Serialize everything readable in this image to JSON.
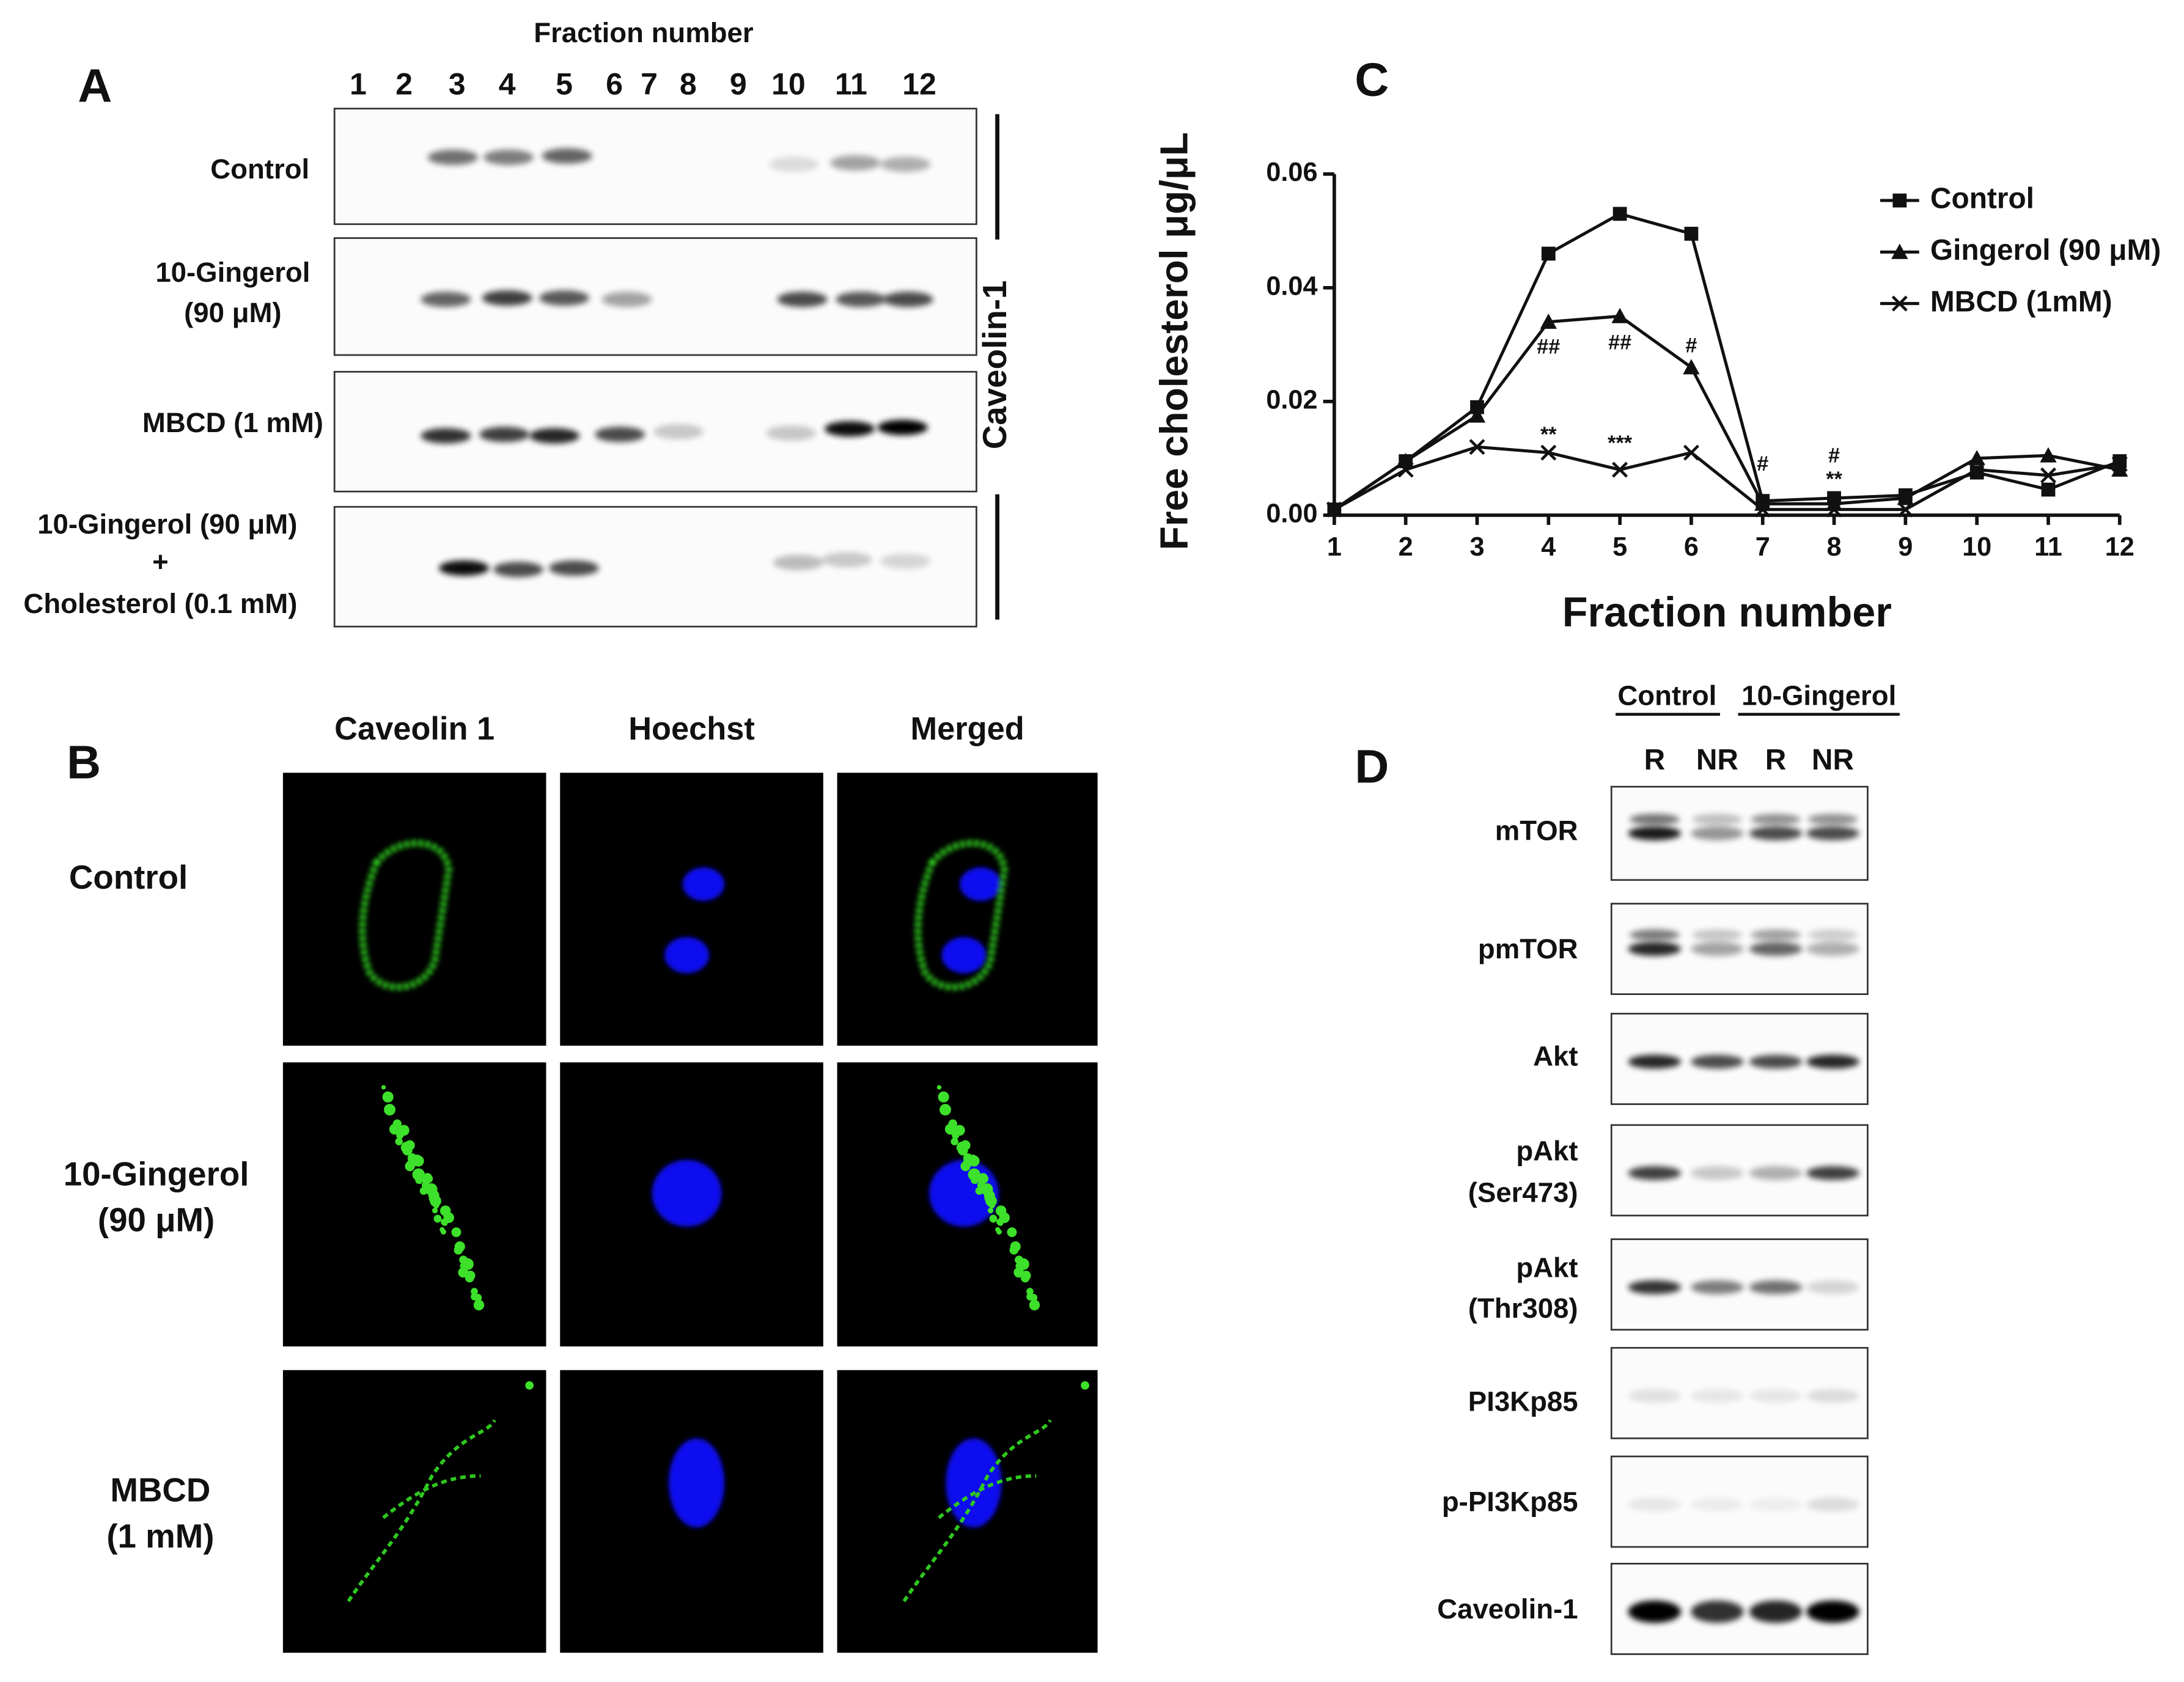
{
  "panel_a": {
    "label": "A",
    "x_title": "Fraction number",
    "lanes": [
      "1",
      "2",
      "3",
      "4",
      "5",
      "6",
      "7",
      "8",
      "9",
      "10",
      "11",
      "12"
    ],
    "rows": [
      [
        "Control"
      ],
      [
        "10-Gingerol",
        "(90 μM)"
      ],
      [
        "MBCD (1 mM)"
      ],
      [
        "10-Gingerol (90 μM)",
        "+",
        "Cholesterol (0.1 mM)"
      ]
    ],
    "side_label": "Caveolin-1"
  },
  "panel_b": {
    "label": "B",
    "columns": [
      "Caveolin 1",
      "Hoechst",
      "Merged"
    ],
    "rows": [
      [
        "Control"
      ],
      [
        "10-Gingerol",
        "(90 μM)"
      ],
      [
        "MBCD",
        "(1 mM)"
      ]
    ]
  },
  "chart_data": {
    "type": "line",
    "panel_label": "C",
    "x_title": "Fraction number",
    "y_title": "Free cholesterol μg/μL",
    "x": [
      1,
      2,
      3,
      4,
      5,
      6,
      7,
      8,
      9,
      10,
      11,
      12
    ],
    "xlim": [
      1,
      12
    ],
    "xticks": [
      1,
      2,
      3,
      4,
      5,
      6,
      7,
      8,
      9,
      10,
      11,
      12
    ],
    "ylim": [
      0,
      0.06
    ],
    "yticks": [
      {
        "value": 0,
        "label": "0.00"
      },
      {
        "value": 0.02,
        "label": "0.02"
      },
      {
        "value": 0.04,
        "label": "0.04"
      },
      {
        "value": 0.06,
        "label": "0.06"
      }
    ],
    "series": [
      {
        "name": "Control",
        "color": "#111111",
        "marker": "square",
        "values": [
          0.001,
          0.0095,
          0.019,
          0.046,
          0.053,
          0.0495,
          0.0025,
          0.003,
          0.0035,
          0.0075,
          0.0045,
          0.0095
        ]
      },
      {
        "name": "Gingerol (90 μM)",
        "color": "#111111",
        "marker": "triangle",
        "values": [
          0.001,
          0.0095,
          0.0175,
          0.034,
          0.035,
          0.026,
          0.002,
          0.002,
          0.003,
          0.01,
          0.0105,
          0.008
        ]
      },
      {
        "name": "MBCD (1mM)",
        "color": "#111111",
        "marker": "cross",
        "values": [
          0.001,
          0.008,
          0.012,
          0.011,
          0.008,
          0.011,
          0.001,
          0.001,
          0.001,
          0.008,
          0.007,
          0.009
        ]
      }
    ],
    "annotations": [
      {
        "x": 4,
        "text": "##"
      },
      {
        "x": 5,
        "text": "##"
      },
      {
        "x": 6,
        "text": "#"
      },
      {
        "x": 4,
        "text": "**"
      },
      {
        "x": 5,
        "text": "***"
      },
      {
        "x": 7,
        "text": "#"
      },
      {
        "x": 8,
        "text": "#"
      },
      {
        "x": 8,
        "text": "**"
      }
    ],
    "legend": "upper right"
  },
  "panel_d": {
    "label": "D",
    "groups": [
      "Control",
      "10-Gingerol"
    ],
    "lanes": [
      "R",
      "NR",
      "R",
      "NR"
    ],
    "rows": [
      [
        "mTOR"
      ],
      [
        "pmTOR"
      ],
      [
        "Akt"
      ],
      [
        "pAkt",
        "(Ser473)"
      ],
      [
        "pAkt",
        "(Thr308)"
      ],
      [
        "PI3Kp85"
      ],
      [
        "p-PI3Kp85"
      ],
      [
        "Caveolin-1"
      ]
    ]
  }
}
